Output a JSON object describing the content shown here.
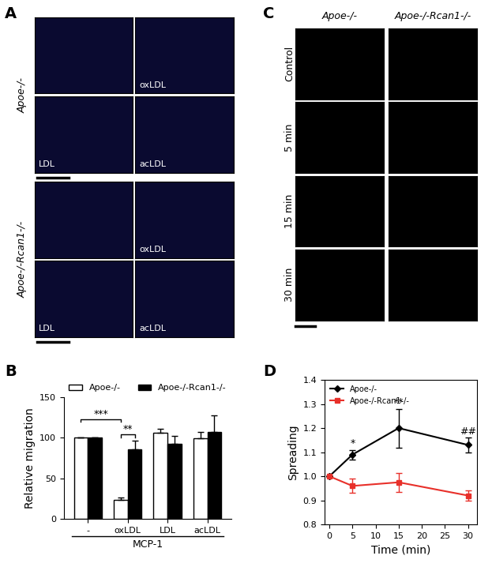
{
  "images": {
    "A": {
      "label": "A",
      "groups": [
        {
          "name": "Apoe-/-",
          "images": [
            null,
            "oxLDL",
            "LDL",
            "acLDL"
          ]
        },
        {
          "name": "Apoe-/-Rcan1-/-",
          "images": [
            null,
            "oxLDL",
            "LDL",
            "acLDL"
          ]
        }
      ]
    },
    "C": {
      "label": "C",
      "columns": [
        "Apoe-/-",
        "Apoe-/-Rcan1-/-"
      ],
      "rows": [
        "Control",
        "5 min",
        "15 min",
        "30 min"
      ]
    }
  },
  "chart_data": [
    {
      "type": "bar",
      "label": "B",
      "categories": [
        "-",
        "oxLDL",
        "LDL",
        "acLDL"
      ],
      "xlabel": "MCP-1",
      "ylabel": "Relative migration",
      "series": [
        {
          "name": "Apoe-/-",
          "color": "#ffffff",
          "values": [
            100,
            23,
            106,
            99
          ],
          "errors": [
            0,
            3,
            5,
            8
          ]
        },
        {
          "name": "Apoe-/-Rcan1-/-",
          "color": "#000000",
          "values": [
            100,
            85,
            92,
            107
          ],
          "errors": [
            0,
            11,
            10,
            20
          ]
        }
      ],
      "ylim": [
        0,
        150
      ],
      "yticks": [
        0,
        50,
        100,
        150
      ],
      "legend": "upper center",
      "annotations": [
        {
          "text": "***",
          "from": {
            "category": "-",
            "series": "Apoe-/-"
          },
          "to": {
            "category": "oxLDL",
            "series": "Apoe-/-"
          }
        },
        {
          "text": "**",
          "from": {
            "category": "oxLDL",
            "series": "Apoe-/-"
          },
          "to": {
            "category": "oxLDL",
            "series": "Apoe-/-Rcan1-/-"
          }
        }
      ]
    },
    {
      "type": "line",
      "label": "D",
      "x": [
        0,
        5,
        15,
        30
      ],
      "xlabel": "Time (min)",
      "ylabel": "Spreading",
      "series": [
        {
          "name": "Apoe-/-",
          "color": "#000000",
          "marker": "diamond",
          "values": [
            1.0,
            1.09,
            1.2,
            1.13
          ],
          "errors": [
            0,
            0.02,
            0.08,
            0.03
          ]
        },
        {
          "name": "Apoe-/-Rcan1-/-",
          "color": "#e8302a",
          "marker": "square",
          "values": [
            1.0,
            0.96,
            0.975,
            0.92
          ],
          "errors": [
            0,
            0.03,
            0.04,
            0.02
          ]
        }
      ],
      "xlim": [
        -1,
        32
      ],
      "xticks": [
        0,
        5,
        10,
        15,
        20,
        25,
        30
      ],
      "ylim": [
        0.8,
        1.4
      ],
      "yticks": [
        0.8,
        0.9,
        {
          "value": 1.0,
          "label": "1.0"
        },
        1.1,
        1.2,
        1.3,
        1.4
      ],
      "legend": "upper left",
      "annotations": [
        {
          "x": 5,
          "series": "Apoe-/-",
          "text": "*"
        },
        {
          "x": 15,
          "series": "Apoe-/-",
          "text": "**"
        },
        {
          "x": 30,
          "series": "Apoe-/-",
          "text": "##"
        }
      ]
    }
  ]
}
